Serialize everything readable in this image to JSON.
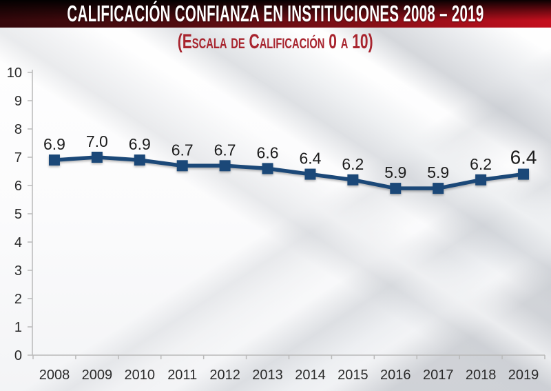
{
  "header": {
    "title": "CALIFICACIÓN CONFIANZA EN INSTITUCIONES 2008 – 2019"
  },
  "subtitle": "(Escala de Calificación 0 a 10)",
  "colors": {
    "banner_red": "#c50f1e",
    "subtitle_red": "#a8242e",
    "series_navy": "#1b4878",
    "axis_gray": "#b9b9b9"
  },
  "chart_data": {
    "type": "line",
    "title": "Calificación confianza en instituciones 2008 – 2019",
    "subtitle": "Escala de calificación 0 a 10",
    "categories": [
      "2008",
      "2009",
      "2010",
      "2011",
      "2012",
      "2013",
      "2014",
      "2015",
      "2016",
      "2017",
      "2018",
      "2019"
    ],
    "values": [
      6.9,
      7.0,
      6.9,
      6.7,
      6.7,
      6.6,
      6.4,
      6.2,
      5.9,
      5.9,
      6.2,
      6.4
    ],
    "data_labels": [
      "6.9",
      "7.0",
      "6.9",
      "6.7",
      "6.7",
      "6.6",
      "6.4",
      "6.2",
      "5.9",
      "5.9",
      "6.2",
      "6.4"
    ],
    "xlabel": "",
    "ylabel": "",
    "ylim": [
      0,
      10
    ],
    "yticks": [
      0,
      1,
      2,
      3,
      4,
      5,
      6,
      7,
      8,
      9,
      10
    ],
    "grid": false,
    "legend": "none",
    "line_color": "#1b4878",
    "marker": "square",
    "axis_color": "#b9b9b9",
    "highlight_last_label": true
  }
}
